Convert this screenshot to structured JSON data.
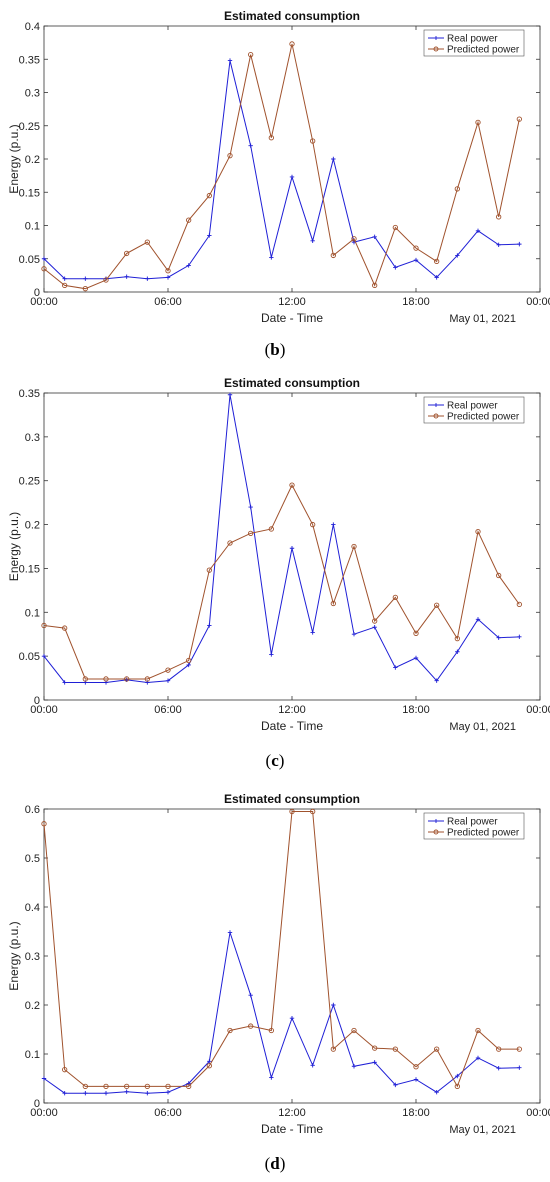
{
  "panels": [
    {
      "label_open": "(",
      "label_letter": "b",
      "label_close": ")"
    },
    {
      "label_open": "(",
      "label_letter": "c",
      "label_close": ")"
    },
    {
      "label_open": "(",
      "label_letter": "d",
      "label_close": ")"
    }
  ],
  "colors": {
    "real": "#1f1fd6",
    "predicted": "#a0522d"
  },
  "chart_data": [
    {
      "type": "line",
      "title": "Estimated consumption",
      "xlabel": "Date - Time",
      "ylabel": "Energy (p.u.)",
      "date_label": "May 01, 2021",
      "x_ticks": [
        "00:00",
        "06:00",
        "12:00",
        "18:00",
        "00:00"
      ],
      "x_tick_hours": [
        0,
        6,
        12,
        18,
        24
      ],
      "xlim": [
        0,
        24
      ],
      "ylim": [
        0,
        0.4
      ],
      "y_ticks": [
        "0",
        "0.05",
        "0.1",
        "0.15",
        "0.2",
        "0.25",
        "0.3",
        "0.35",
        "0.4"
      ],
      "y_tick_values": [
        0,
        0.05,
        0.1,
        0.15,
        0.2,
        0.25,
        0.3,
        0.35,
        0.4
      ],
      "legend_position": "top-right",
      "series": [
        {
          "name": "Real power",
          "x": [
            0,
            1,
            2,
            3,
            4,
            5,
            6,
            7,
            8,
            9,
            10,
            11,
            12,
            13,
            14,
            15,
            16,
            17,
            18,
            19,
            20,
            21,
            22,
            23
          ],
          "values": [
            0.05,
            0.02,
            0.02,
            0.02,
            0.023,
            0.02,
            0.022,
            0.04,
            0.085,
            0.348,
            0.22,
            0.052,
            0.173,
            0.077,
            0.2,
            0.075,
            0.083,
            0.037,
            0.048,
            0.022,
            0.055,
            0.092,
            0.071,
            0.072
          ]
        },
        {
          "name": "Predicted power",
          "x": [
            0,
            1,
            2,
            3,
            4,
            5,
            6,
            7,
            8,
            9,
            10,
            11,
            12,
            13,
            14,
            15,
            16,
            17,
            18,
            19,
            20,
            21,
            22,
            23
          ],
          "values": [
            0.035,
            0.01,
            0.005,
            0.018,
            0.058,
            0.075,
            0.032,
            0.108,
            0.145,
            0.205,
            0.357,
            0.232,
            0.373,
            0.227,
            0.055,
            0.08,
            0.01,
            0.097,
            0.066,
            0.046,
            0.155,
            0.255,
            0.113,
            0.26
          ]
        }
      ]
    },
    {
      "type": "line",
      "title": "Estimated consumption",
      "xlabel": "Date - Time",
      "ylabel": "Energy (p.u.)",
      "date_label": "May 01, 2021",
      "x_ticks": [
        "00:00",
        "06:00",
        "12:00",
        "18:00",
        "00:00"
      ],
      "x_tick_hours": [
        0,
        6,
        12,
        18,
        24
      ],
      "xlim": [
        0,
        24
      ],
      "ylim": [
        0,
        0.35
      ],
      "y_ticks": [
        "0",
        "0.05",
        "0.1",
        "0.15",
        "0.2",
        "0.25",
        "0.3",
        "0.35"
      ],
      "y_tick_values": [
        0,
        0.05,
        0.1,
        0.15,
        0.2,
        0.25,
        0.3,
        0.35
      ],
      "legend_position": "top-right",
      "series": [
        {
          "name": "Real power",
          "x": [
            0,
            1,
            2,
            3,
            4,
            5,
            6,
            7,
            8,
            9,
            10,
            11,
            12,
            13,
            14,
            15,
            16,
            17,
            18,
            19,
            20,
            21,
            22,
            23
          ],
          "values": [
            0.05,
            0.02,
            0.02,
            0.02,
            0.023,
            0.02,
            0.022,
            0.04,
            0.085,
            0.348,
            0.22,
            0.052,
            0.173,
            0.077,
            0.2,
            0.075,
            0.083,
            0.037,
            0.048,
            0.022,
            0.055,
            0.092,
            0.071,
            0.072
          ]
        },
        {
          "name": "Predicted power",
          "x": [
            0,
            1,
            2,
            3,
            4,
            5,
            6,
            7,
            8,
            9,
            10,
            11,
            12,
            13,
            14,
            15,
            16,
            17,
            18,
            19,
            20,
            21,
            22,
            23
          ],
          "values": [
            0.085,
            0.082,
            0.024,
            0.024,
            0.024,
            0.024,
            0.034,
            0.045,
            0.148,
            0.179,
            0.19,
            0.195,
            0.245,
            0.2,
            0.11,
            0.175,
            0.09,
            0.117,
            0.076,
            0.108,
            0.07,
            0.192,
            0.142,
            0.109
          ]
        }
      ]
    },
    {
      "type": "line",
      "title": "Estimated consumption",
      "xlabel": "Date - Time",
      "ylabel": "Energy (p.u.)",
      "date_label": "May 01, 2021",
      "x_ticks": [
        "00:00",
        "06:00",
        "12:00",
        "18:00",
        "00:00"
      ],
      "x_tick_hours": [
        0,
        6,
        12,
        18,
        24
      ],
      "xlim": [
        0,
        24
      ],
      "ylim": [
        0,
        0.6
      ],
      "y_ticks": [
        "0",
        "0.1",
        "0.2",
        "0.3",
        "0.4",
        "0.5",
        "0.6"
      ],
      "y_tick_values": [
        0,
        0.1,
        0.2,
        0.3,
        0.4,
        0.5,
        0.6
      ],
      "legend_position": "top-right",
      "series": [
        {
          "name": "Real power",
          "x": [
            0,
            1,
            2,
            3,
            4,
            5,
            6,
            7,
            8,
            9,
            10,
            11,
            12,
            13,
            14,
            15,
            16,
            17,
            18,
            19,
            20,
            21,
            22,
            23
          ],
          "values": [
            0.05,
            0.02,
            0.02,
            0.02,
            0.023,
            0.02,
            0.022,
            0.04,
            0.085,
            0.348,
            0.22,
            0.052,
            0.173,
            0.077,
            0.2,
            0.075,
            0.083,
            0.037,
            0.048,
            0.022,
            0.055,
            0.092,
            0.071,
            0.072
          ]
        },
        {
          "name": "Predicted power",
          "x": [
            0,
            1,
            2,
            3,
            4,
            5,
            6,
            7,
            8,
            9,
            10,
            11,
            12,
            13,
            14,
            15,
            16,
            17,
            18,
            19,
            20,
            21,
            22,
            23
          ],
          "values": [
            0.57,
            0.068,
            0.034,
            0.034,
            0.034,
            0.034,
            0.034,
            0.034,
            0.076,
            0.148,
            0.157,
            0.148,
            0.595,
            0.595,
            0.11,
            0.148,
            0.112,
            0.11,
            0.074,
            0.11,
            0.034,
            0.148,
            0.11,
            0.11
          ]
        }
      ]
    }
  ]
}
